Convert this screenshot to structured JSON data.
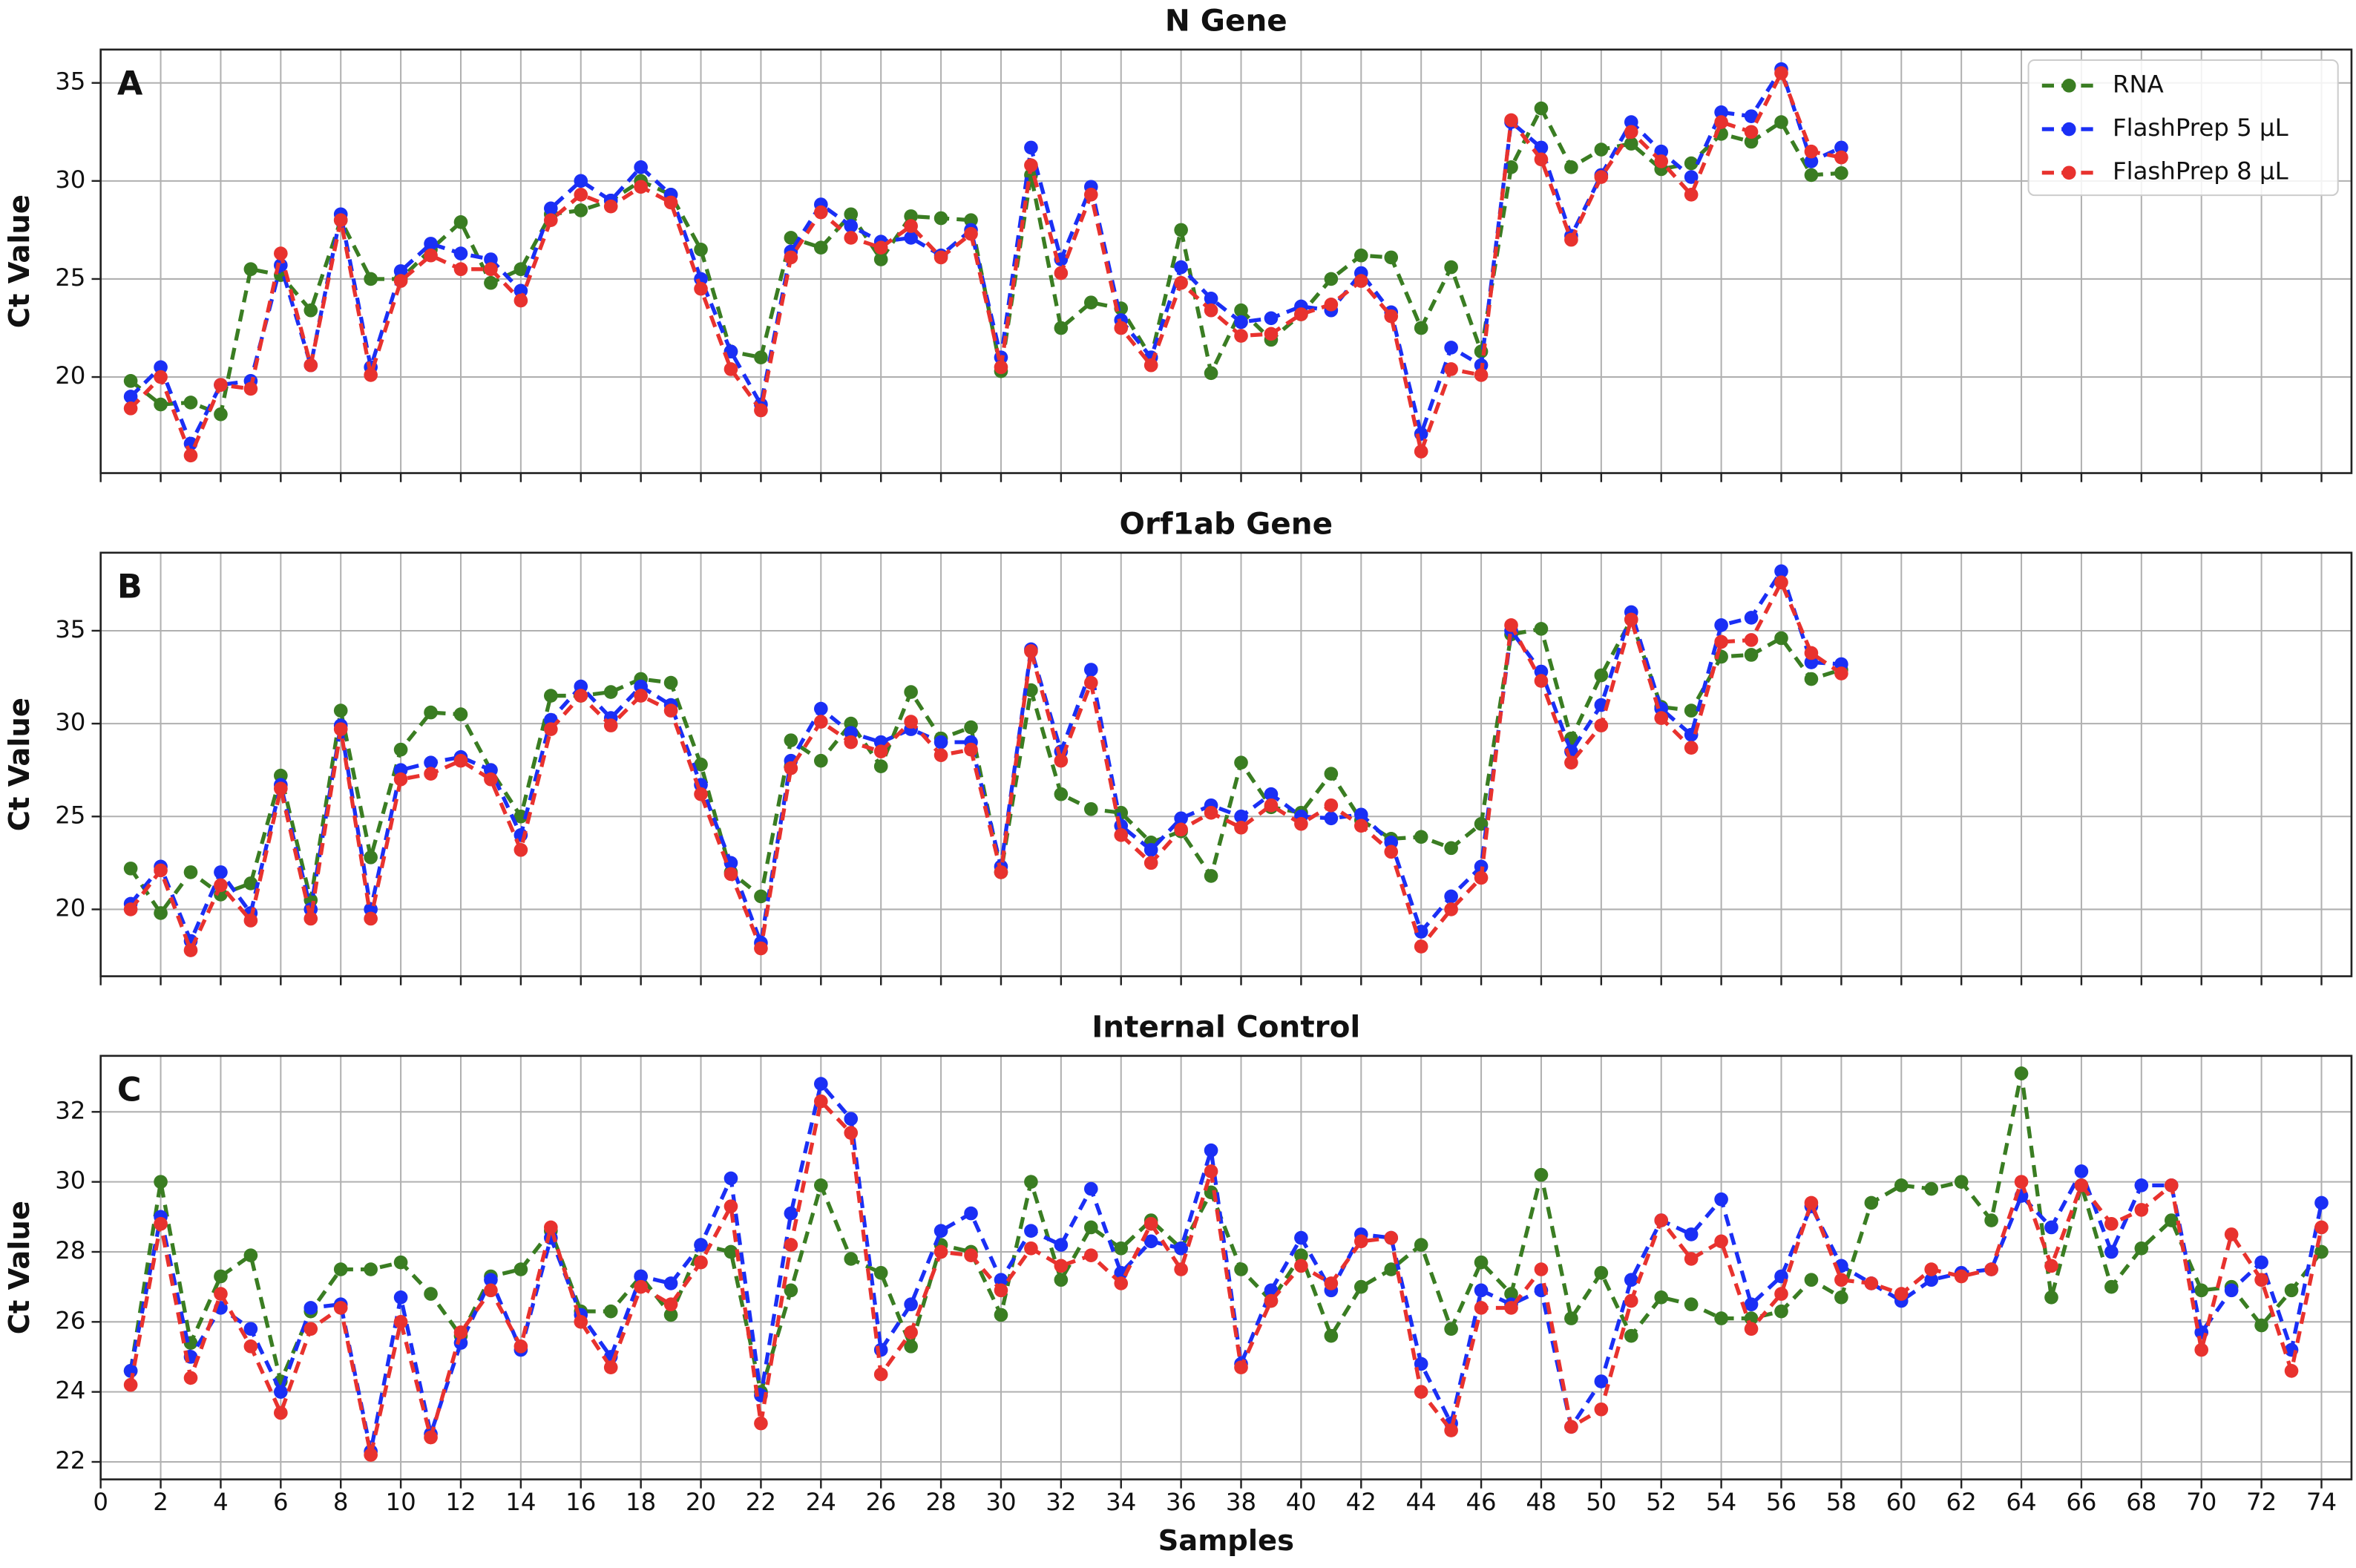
{
  "chart_data": [
    {
      "type": "line",
      "title": "N Gene",
      "panel_label": "A",
      "ylabel": "Ct Value",
      "legend": "upper right",
      "grid": true,
      "xlim": [
        0,
        75
      ],
      "ylim": [
        15.1,
        36.7
      ],
      "yticks": [
        20,
        25,
        30,
        35
      ],
      "x": [
        1,
        2,
        3,
        4,
        5,
        6,
        7,
        8,
        9,
        10,
        11,
        12,
        13,
        14,
        15,
        16,
        17,
        18,
        19,
        20,
        21,
        22,
        23,
        24,
        25,
        26,
        27,
        28,
        29,
        30,
        31,
        32,
        33,
        34,
        35,
        36,
        37,
        38,
        39,
        40,
        41,
        42,
        43,
        44,
        45,
        46,
        47,
        48,
        49,
        50,
        51,
        52,
        53,
        54,
        55,
        56,
        57,
        58
      ],
      "series": [
        {
          "name": "RNA",
          "color": "#3a7d22",
          "values": [
            19.8,
            18.6,
            18.7,
            18.1,
            25.5,
            25.2,
            23.4,
            28.0,
            25.0,
            25.0,
            26.5,
            27.9,
            24.8,
            25.5,
            28.3,
            28.5,
            29.0,
            30.0,
            29.3,
            26.5,
            21.3,
            21.0,
            27.1,
            26.6,
            28.3,
            26.0,
            28.2,
            28.1,
            28.0,
            20.3,
            30.3,
            22.5,
            23.8,
            23.5,
            21.0,
            27.5,
            20.2,
            23.4,
            21.9,
            23.2,
            25.0,
            26.2,
            26.1,
            22.5,
            25.6,
            21.3,
            30.7,
            33.7,
            30.7,
            31.6,
            31.9,
            30.6,
            30.9,
            32.4,
            32.0,
            33.0,
            30.3,
            30.4
          ]
        },
        {
          "name": "FlashPrep 5 μL",
          "color": "#1a2ff5",
          "values": [
            19.0,
            20.5,
            16.6,
            19.6,
            19.8,
            25.7,
            20.6,
            28.3,
            20.5,
            25.4,
            26.8,
            26.3,
            26.0,
            24.4,
            28.6,
            30.0,
            29.0,
            30.7,
            29.3,
            25.0,
            21.3,
            18.6,
            26.4,
            28.8,
            27.7,
            26.9,
            27.1,
            26.2,
            27.5,
            21.0,
            31.7,
            26.0,
            29.7,
            22.9,
            21.0,
            25.6,
            24.0,
            22.8,
            23.0,
            23.6,
            23.4,
            25.3,
            23.3,
            17.1,
            21.5,
            20.6,
            33.0,
            31.7,
            27.2,
            30.3,
            33.0,
            31.5,
            30.2,
            33.5,
            33.3,
            35.7,
            31.0,
            31.7
          ]
        },
        {
          "name": "FlashPrep 8 μL",
          "color": "#e8322e",
          "values": [
            18.4,
            20.0,
            16.0,
            19.6,
            19.4,
            26.3,
            20.6,
            28.0,
            20.1,
            24.9,
            26.2,
            25.5,
            25.5,
            23.9,
            28.0,
            29.3,
            28.7,
            29.7,
            28.9,
            24.5,
            20.4,
            18.3,
            26.1,
            28.4,
            27.1,
            26.6,
            27.7,
            26.1,
            27.3,
            20.5,
            30.8,
            25.3,
            29.3,
            22.5,
            20.6,
            24.8,
            23.4,
            22.1,
            22.2,
            23.2,
            23.7,
            24.9,
            23.1,
            16.2,
            20.4,
            20.1,
            33.1,
            31.1,
            27.0,
            30.2,
            32.5,
            31.0,
            29.3,
            33.0,
            32.5,
            35.5,
            31.5,
            31.2
          ]
        }
      ]
    },
    {
      "type": "line",
      "title": "Orf1ab Gene",
      "panel_label": "B",
      "ylabel": "Ct Value",
      "grid": true,
      "xlim": [
        0,
        75
      ],
      "ylim": [
        16.4,
        39.2
      ],
      "yticks": [
        20,
        25,
        30,
        35
      ],
      "x": [
        1,
        2,
        3,
        4,
        5,
        6,
        7,
        8,
        9,
        10,
        11,
        12,
        13,
        14,
        15,
        16,
        17,
        18,
        19,
        20,
        21,
        22,
        23,
        24,
        25,
        26,
        27,
        28,
        29,
        30,
        31,
        32,
        33,
        34,
        35,
        36,
        37,
        38,
        39,
        40,
        41,
        42,
        43,
        44,
        45,
        46,
        47,
        48,
        49,
        50,
        51,
        52,
        53,
        54,
        55,
        56,
        57,
        58
      ],
      "series": [
        {
          "name": "RNA",
          "color": "#3a7d22",
          "values": [
            22.2,
            19.8,
            22.0,
            20.8,
            21.4,
            27.2,
            20.5,
            30.7,
            22.8,
            28.6,
            30.6,
            30.5,
            27.5,
            25.0,
            31.5,
            31.5,
            31.7,
            32.4,
            32.2,
            27.8,
            22.0,
            20.7,
            29.1,
            28.0,
            30.0,
            27.7,
            31.7,
            29.2,
            29.8,
            22.0,
            31.8,
            26.2,
            25.4,
            25.2,
            23.6,
            24.2,
            21.8,
            27.9,
            25.5,
            25.2,
            27.3,
            24.8,
            23.8,
            23.9,
            23.3,
            24.6,
            34.8,
            35.1,
            29.2,
            32.6,
            35.6,
            30.9,
            30.7,
            33.6,
            33.7,
            34.6,
            32.4,
            32.9
          ]
        },
        {
          "name": "FlashPrep 5 μL",
          "color": "#1a2ff5",
          "values": [
            20.3,
            22.3,
            18.3,
            22.0,
            19.8,
            26.7,
            20.0,
            29.9,
            20.0,
            27.5,
            27.9,
            28.2,
            27.5,
            24.0,
            30.2,
            32.0,
            30.3,
            32.0,
            31.0,
            26.7,
            22.5,
            18.2,
            28.0,
            30.8,
            29.5,
            29.0,
            29.7,
            29.0,
            29.0,
            22.3,
            34.0,
            28.5,
            32.9,
            24.5,
            23.2,
            24.9,
            25.6,
            25.0,
            26.2,
            25.0,
            24.9,
            25.1,
            23.6,
            18.8,
            20.7,
            22.3,
            35.0,
            32.8,
            28.5,
            31.0,
            36.0,
            30.8,
            29.4,
            35.3,
            35.7,
            38.2,
            33.3,
            33.2
          ]
        },
        {
          "name": "FlashPrep 8 μL",
          "color": "#e8322e",
          "values": [
            20.0,
            22.1,
            17.8,
            21.3,
            19.4,
            26.5,
            19.5,
            29.7,
            19.5,
            27.0,
            27.3,
            28.0,
            27.0,
            23.2,
            29.7,
            31.5,
            29.9,
            31.5,
            30.7,
            26.2,
            21.9,
            17.9,
            27.6,
            30.1,
            29.0,
            28.5,
            30.1,
            28.3,
            28.6,
            22.0,
            33.9,
            28.0,
            32.2,
            24.0,
            22.5,
            24.3,
            25.2,
            24.4,
            25.6,
            24.6,
            25.6,
            24.5,
            23.1,
            18.0,
            20.0,
            21.7,
            35.3,
            32.3,
            27.9,
            29.9,
            35.6,
            30.3,
            28.7,
            34.4,
            34.5,
            37.6,
            33.8,
            32.7
          ]
        }
      ]
    },
    {
      "type": "line",
      "title": "Internal Control",
      "panel_label": "C",
      "ylabel": "Ct Value",
      "xlabel": "Samples",
      "grid": true,
      "xlim": [
        0,
        75
      ],
      "ylim": [
        21.5,
        33.6
      ],
      "yticks": [
        22,
        24,
        26,
        28,
        30,
        32
      ],
      "xticks": [
        0,
        2,
        4,
        6,
        8,
        10,
        12,
        14,
        16,
        18,
        20,
        22,
        24,
        26,
        28,
        30,
        32,
        34,
        36,
        38,
        40,
        42,
        44,
        46,
        48,
        50,
        52,
        54,
        56,
        58,
        60,
        62,
        64,
        66,
        68,
        70,
        72,
        74
      ],
      "x": [
        1,
        2,
        3,
        4,
        5,
        6,
        7,
        8,
        9,
        10,
        11,
        12,
        13,
        14,
        15,
        16,
        17,
        18,
        19,
        20,
        21,
        22,
        23,
        24,
        25,
        26,
        27,
        28,
        29,
        30,
        31,
        32,
        33,
        34,
        35,
        36,
        37,
        38,
        39,
        40,
        41,
        42,
        43,
        44,
        45,
        46,
        47,
        48,
        49,
        50,
        51,
        52,
        53,
        54,
        55,
        56,
        57,
        58,
        59,
        60,
        61,
        62,
        63,
        64,
        65,
        66,
        67,
        68,
        69,
        70,
        71,
        72,
        73,
        74
      ],
      "series": [
        {
          "name": "RNA",
          "color": "#3a7d22",
          "values": [
            24.6,
            30.0,
            25.4,
            27.3,
            27.9,
            24.3,
            26.3,
            27.5,
            27.5,
            27.7,
            26.8,
            25.6,
            27.3,
            27.5,
            28.6,
            26.3,
            26.3,
            27.3,
            26.2,
            28.2,
            28.0,
            24.0,
            26.9,
            29.9,
            27.8,
            27.4,
            25.3,
            28.2,
            28.0,
            26.2,
            30.0,
            27.2,
            28.7,
            28.1,
            28.9,
            28.1,
            29.7,
            27.5,
            26.6,
            27.9,
            25.6,
            27.0,
            27.5,
            28.2,
            25.8,
            27.7,
            26.8,
            30.2,
            26.1,
            27.4,
            25.6,
            26.7,
            26.5,
            26.1,
            26.1,
            26.3,
            27.2,
            26.7,
            29.4,
            29.9,
            29.8,
            30.0,
            28.9,
            33.1,
            26.7,
            29.9,
            27.0,
            28.1,
            28.9,
            26.9,
            27.0,
            25.9,
            26.9,
            28.0
          ]
        },
        {
          "name": "FlashPrep 5 μL",
          "color": "#1a2ff5",
          "values": [
            24.6,
            29.0,
            25.0,
            26.4,
            25.8,
            24.0,
            26.4,
            26.5,
            22.3,
            26.7,
            22.8,
            25.4,
            27.2,
            25.2,
            28.4,
            26.2,
            25.0,
            27.3,
            27.1,
            28.2,
            30.1,
            23.9,
            29.1,
            32.8,
            31.8,
            25.2,
            26.5,
            28.6,
            29.1,
            27.2,
            28.6,
            28.2,
            29.8,
            27.4,
            28.3,
            28.1,
            30.9,
            24.8,
            26.9,
            28.4,
            26.9,
            28.5,
            28.4,
            24.8,
            23.1,
            26.9,
            26.5,
            26.9,
            23.0,
            24.3,
            27.2,
            28.9,
            28.5,
            29.5,
            26.5,
            27.3,
            29.3,
            27.6,
            27.1,
            26.6,
            27.2,
            27.4,
            27.5,
            29.6,
            28.7,
            30.3,
            28.0,
            29.9,
            29.9,
            25.7,
            26.9,
            27.7,
            25.2,
            29.4
          ]
        },
        {
          "name": "FlashPrep 8 μL",
          "color": "#e8322e",
          "values": [
            24.2,
            28.8,
            24.4,
            26.8,
            25.3,
            23.4,
            25.8,
            26.4,
            22.2,
            26.0,
            22.7,
            25.7,
            26.9,
            25.3,
            28.7,
            26.0,
            24.7,
            27.0,
            26.5,
            27.7,
            29.3,
            23.1,
            28.2,
            32.3,
            31.4,
            24.5,
            25.7,
            28.0,
            27.9,
            26.9,
            28.1,
            27.6,
            27.9,
            27.1,
            28.8,
            27.5,
            30.3,
            24.7,
            26.6,
            27.6,
            27.1,
            28.3,
            28.4,
            24.0,
            22.9,
            26.4,
            26.4,
            27.5,
            23.0,
            23.5,
            26.6,
            28.9,
            27.8,
            28.3,
            25.8,
            26.8,
            29.4,
            27.2,
            27.1,
            26.8,
            27.5,
            27.3,
            27.5,
            30.0,
            27.6,
            29.9,
            28.8,
            29.2,
            29.9,
            25.2,
            28.5,
            27.2,
            24.6,
            28.7
          ]
        }
      ]
    }
  ]
}
